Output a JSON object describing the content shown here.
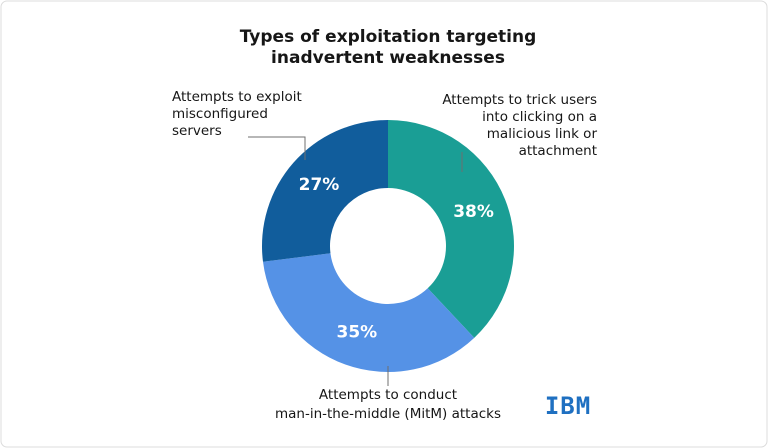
{
  "chart_data": {
    "type": "donut",
    "title": [
      "Types of exploitation targeting",
      "inadvertent weaknesses"
    ],
    "categories": [
      [
        "Attempts to trick users",
        "into clicking on a",
        "malicious link or",
        "attachment"
      ],
      [
        "Attempts to conduct",
        "man-in-the-middle (MitM) attacks"
      ],
      [
        "Attempts to exploit",
        "misconfigured",
        "servers"
      ]
    ],
    "values": [
      38,
      35,
      27
    ],
    "value_labels": [
      "38%",
      "35%",
      "27%"
    ],
    "colors": [
      "#1a9e95",
      "#5592e6",
      "#115d9c"
    ],
    "logo": "IBM"
  }
}
